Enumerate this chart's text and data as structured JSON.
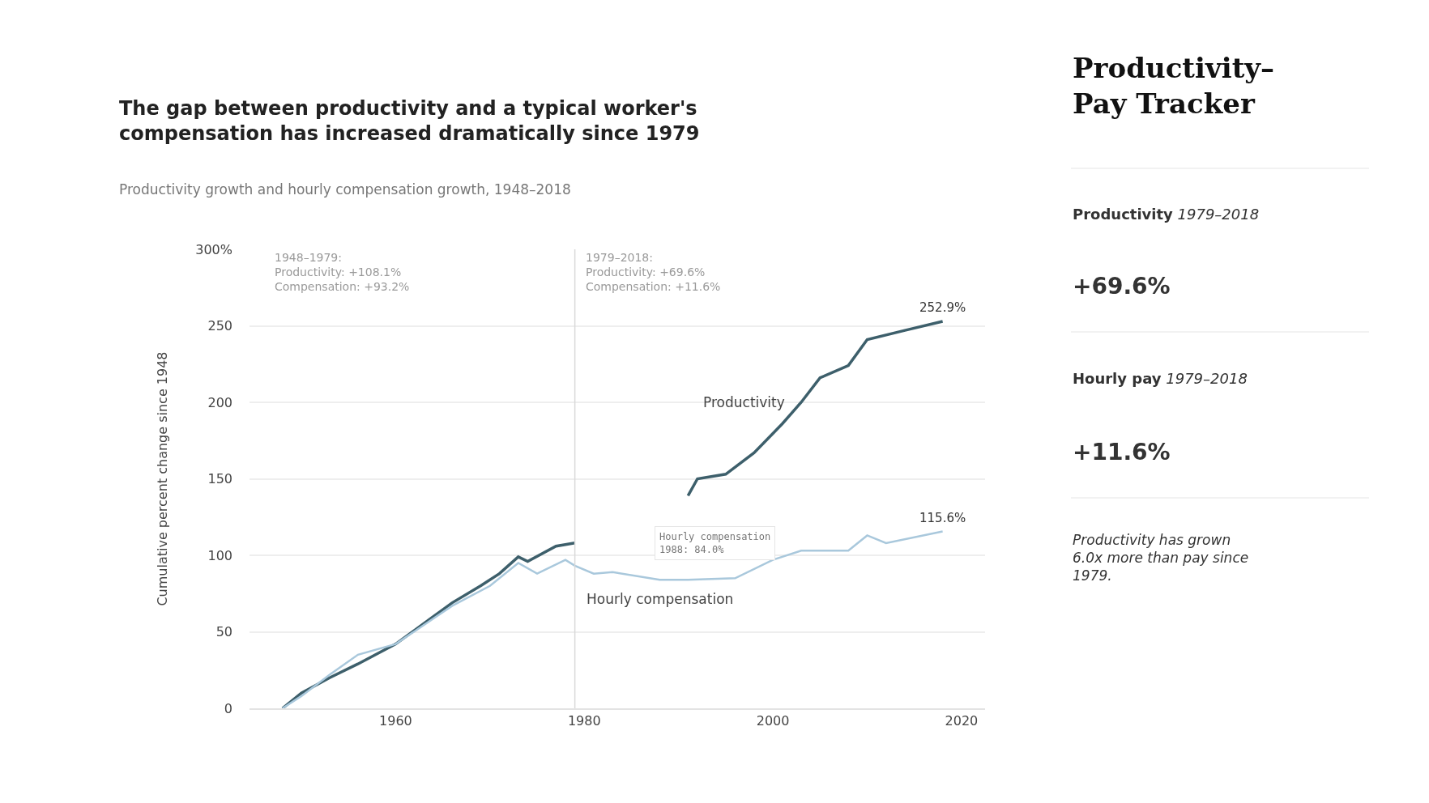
{
  "chart_data": [
    {
      "type": "line",
      "title": "The gap between productivity and a typical worker's compensation has increased dramatically since 1979",
      "subtitle": "Productivity growth and hourly compensation growth, 1948–2018",
      "ylabel": "Cumulative percent change since 1948",
      "xlim": [
        1944.5,
        2022.5
      ],
      "xticks": [
        1960,
        1980,
        2000,
        2020
      ],
      "ylim": [
        0,
        300
      ],
      "yticks": [
        0,
        50,
        100,
        150,
        200,
        250,
        {
          "value": 300,
          "label": "300%"
        }
      ],
      "grid": "y",
      "legend": false,
      "line_style": "solid",
      "ref_lines": [
        {
          "axis": "x",
          "value": 1979,
          "label": null,
          "color": "#d9d9d9"
        }
      ],
      "annotations": [
        "1948–1979:\nProductivity: +108.1%\nCompensation: +93.2%",
        "1979–2018:\nProductivity: +69.6%\nCompensation: +11.6%",
        {
          "text": "Hourly compensation\n1988: 84.0%",
          "x": 1988,
          "y": 84.0
        }
      ],
      "series": [
        {
          "name": "Productivity",
          "color": "#3d5f6b",
          "x": [
            1948,
            1950,
            1953,
            1956,
            1960,
            1966,
            1969,
            1971,
            1973,
            1974,
            1977,
            1979,
            1980,
            1990,
            1991,
            1992,
            1995,
            1998,
            2001,
            2003,
            2005,
            2008,
            2010,
            2014,
            2018
          ],
          "values": [
            0,
            10,
            20,
            29,
            42,
            69,
            80,
            88,
            99,
            96,
            106,
            108.1,
            null,
            null,
            139,
            150,
            153,
            167,
            186,
            200,
            216,
            224,
            241,
            247,
            252.9
          ],
          "value_labels": [
            null,
            null,
            null,
            null,
            null,
            null,
            null,
            null,
            null,
            null,
            null,
            null,
            null,
            null,
            null,
            null,
            null,
            null,
            null,
            null,
            null,
            null,
            null,
            null,
            "252.9%"
          ]
        },
        {
          "name": "Hourly compensation",
          "color": "#a9c8dc",
          "x": [
            1948,
            1950,
            1953,
            1956,
            1960,
            1966,
            1970,
            1973,
            1975,
            1978,
            1979,
            1981,
            1983,
            1988,
            1991,
            1996,
            2000,
            2003,
            2008,
            2010,
            2012,
            2018
          ],
          "values": [
            0,
            8,
            22,
            35,
            42,
            67,
            80,
            95,
            88,
            97,
            93.2,
            88,
            89,
            84.0,
            84,
            85,
            97,
            103,
            103,
            113,
            108,
            115.6
          ],
          "value_labels": [
            null,
            null,
            null,
            null,
            null,
            null,
            null,
            null,
            null,
            null,
            null,
            null,
            null,
            null,
            null,
            null,
            null,
            null,
            null,
            null,
            null,
            "115.6%"
          ]
        }
      ]
    },
    {
      "type": "other",
      "title": "Productivity–Pay Tracker",
      "annotations": [
        "Productivity 1979–2018",
        "+69.6%",
        "Hourly pay 1979–2018",
        "+11.6%",
        "Productivity has grown 6.0x more than pay since 1979."
      ]
    }
  ]
}
